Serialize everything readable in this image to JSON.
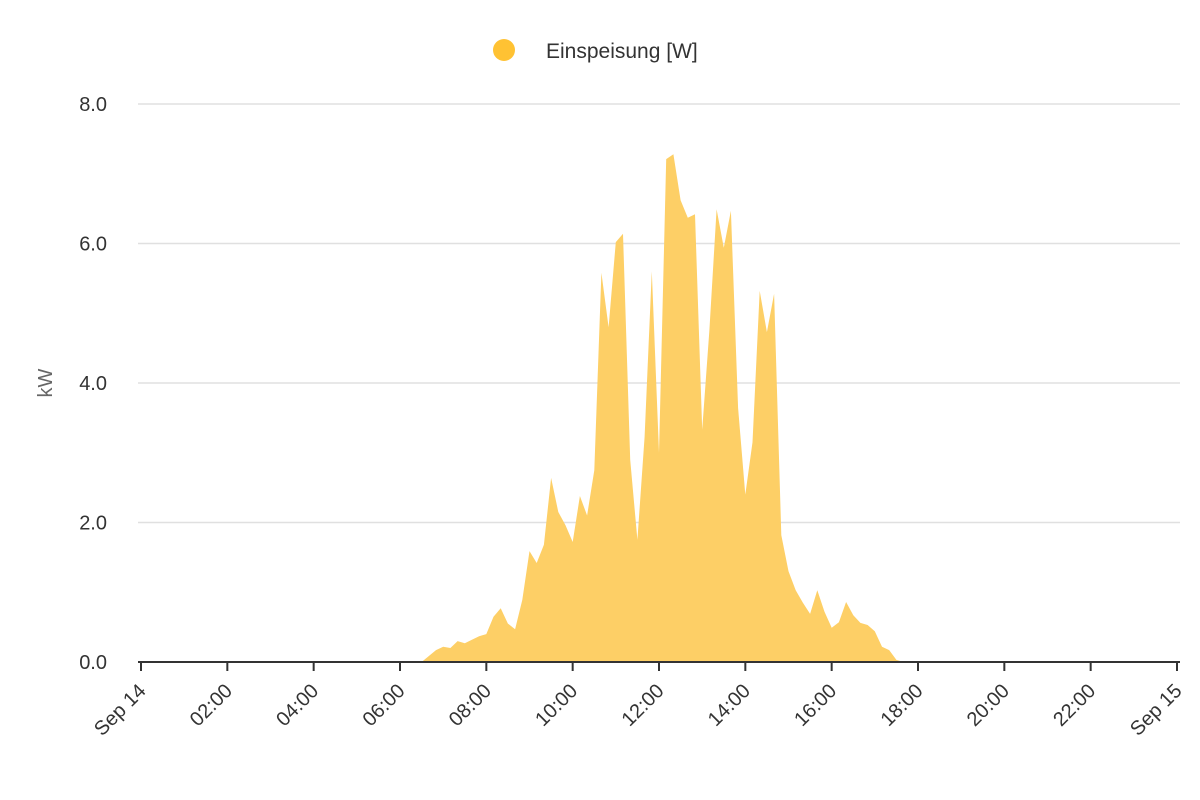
{
  "chart_data": {
    "type": "area",
    "title": "",
    "xlabel": "",
    "ylabel": "kW",
    "ylim": [
      0,
      8
    ],
    "xlim": [
      "Sep 14 00:00",
      "Sep 15 00:00"
    ],
    "grid": true,
    "legend_placement": "top-center",
    "x_tick_labels": [
      "Sep 14",
      "02:00",
      "04:00",
      "06:00",
      "08:00",
      "10:00",
      "12:00",
      "14:00",
      "16:00",
      "18:00",
      "20:00",
      "22:00",
      "Sep 15"
    ],
    "y_tick_labels": [
      "0.0",
      "2.0",
      "4.0",
      "6.0",
      "8.0"
    ],
    "y_tick_values": [
      0,
      2,
      4,
      6,
      8
    ],
    "series": [
      {
        "name": "Einspeisung [W]",
        "color": "#ffc233",
        "fill_color": "#fdcf66",
        "x": [
          "06:30",
          "06:50",
          "07:00",
          "07:10",
          "07:20",
          "07:30",
          "07:40",
          "07:50",
          "08:00",
          "08:10",
          "08:20",
          "08:30",
          "08:40",
          "08:50",
          "09:00",
          "09:10",
          "09:20",
          "09:30",
          "09:40",
          "09:50",
          "10:00",
          "10:10",
          "10:20",
          "10:30",
          "10:40",
          "10:50",
          "11:00",
          "11:10",
          "11:20",
          "11:30",
          "11:40",
          "11:50",
          "12:00",
          "12:10",
          "12:20",
          "12:30",
          "12:40",
          "12:50",
          "13:00",
          "13:10",
          "13:20",
          "13:30",
          "13:40",
          "13:50",
          "14:00",
          "14:10",
          "14:20",
          "14:30",
          "14:40",
          "14:50",
          "15:00",
          "15:10",
          "15:20",
          "15:30",
          "15:40",
          "15:50",
          "16:00",
          "16:10",
          "16:20",
          "16:30",
          "16:40",
          "16:50",
          "17:00",
          "17:10",
          "17:20",
          "17:30",
          "17:40"
        ],
        "values": [
          0,
          0.17,
          0.22,
          0.2,
          0.3,
          0.27,
          0.32,
          0.37,
          0.4,
          0.65,
          0.77,
          0.55,
          0.47,
          0.89,
          1.59,
          1.42,
          1.68,
          2.64,
          2.15,
          1.96,
          1.72,
          2.38,
          2.1,
          2.75,
          5.58,
          4.8,
          6.02,
          6.14,
          2.9,
          1.75,
          3.23,
          5.6,
          3.0,
          7.21,
          7.28,
          6.62,
          6.37,
          6.42,
          3.33,
          4.76,
          6.49,
          5.94,
          6.47,
          3.64,
          2.4,
          3.15,
          5.32,
          4.73,
          5.28,
          1.82,
          1.3,
          1.03,
          0.85,
          0.69,
          1.03,
          0.72,
          0.49,
          0.57,
          0.86,
          0.67,
          0.56,
          0.53,
          0.44,
          0.22,
          0.17,
          0.03,
          0
        ]
      }
    ]
  }
}
